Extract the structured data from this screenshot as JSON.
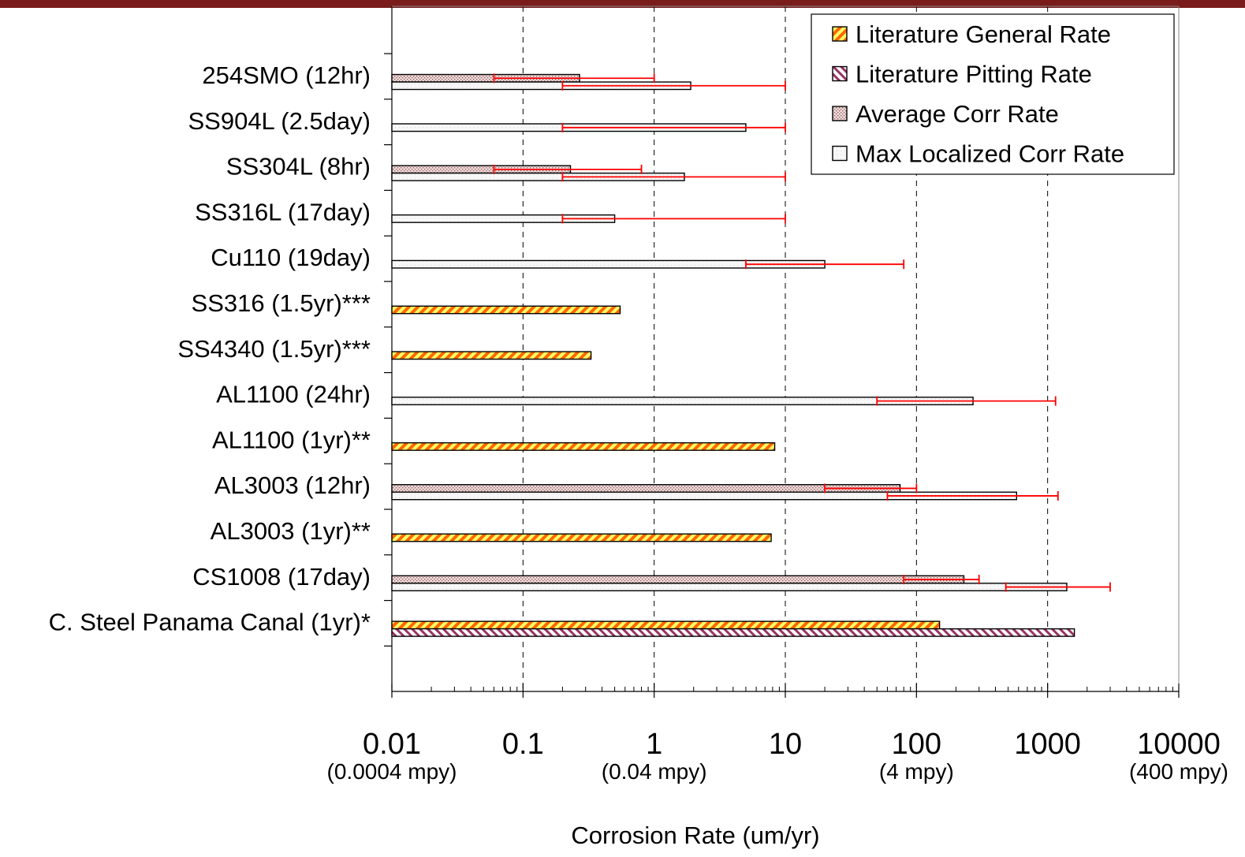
{
  "theme": {
    "top_bar_color": "#7a1c1c",
    "error_bar_color": "#ff0000",
    "lit_general_stripe": "#ff6600",
    "lit_pitting_stripe": "#993366"
  },
  "chart_data": {
    "type": "bar",
    "orientation": "horizontal",
    "x_scale": "log",
    "xlim": [
      0.01,
      10000
    ],
    "x_ticks": [
      {
        "value": 0.01,
        "label": "0.01",
        "sub": "(0.0004 mpy)"
      },
      {
        "value": 0.1,
        "label": "0.1",
        "sub": ""
      },
      {
        "value": 1,
        "label": "1",
        "sub": "(0.04 mpy)"
      },
      {
        "value": 10,
        "label": "10",
        "sub": ""
      },
      {
        "value": 100,
        "label": "100",
        "sub": "(4 mpy)"
      },
      {
        "value": 1000,
        "label": "1000",
        "sub": ""
      },
      {
        "value": 10000,
        "label": "10000",
        "sub": "(400 mpy)"
      }
    ],
    "xlabel": "Corrosion Rate (um/yr)",
    "ylabel": "",
    "grid": "vertical dashed at decades",
    "legend_position": "top-right",
    "legend": [
      {
        "name": "Literature General Rate",
        "pattern": "lit-general"
      },
      {
        "name": "Literature Pitting Rate",
        "pattern": "lit-pitting"
      },
      {
        "name": "Average Corr Rate",
        "pattern": "avg"
      },
      {
        "name": "Max Localized Corr Rate",
        "pattern": "max"
      }
    ],
    "categories": [
      "254SMO (12hr)",
      "SS904L (2.5day)",
      "SS304L (8hr)",
      "SS316L (17day)",
      "Cu110 (19day)",
      "SS316 (1.5yr)***",
      "SS4340 (1.5yr)***",
      "AL1100 (24hr)",
      "AL1100 (1yr)**",
      "AL3003 (12hr)",
      "AL3003 (1yr)**",
      "CS1008 (17day)",
      "C. Steel Panama Canal (1yr)*"
    ],
    "bars": [
      {
        "category": "254SMO (12hr)",
        "series": "avg",
        "value": 0.27,
        "err": [
          0.06,
          1.0
        ]
      },
      {
        "category": "254SMO (12hr)",
        "series": "max",
        "value": 1.9,
        "err": [
          0.2,
          10
        ]
      },
      {
        "category": "SS904L (2.5day)",
        "series": "max",
        "value": 5.0,
        "err": [
          0.2,
          10
        ]
      },
      {
        "category": "SS304L (8hr)",
        "series": "avg",
        "value": 0.23,
        "err": [
          0.06,
          0.8
        ]
      },
      {
        "category": "SS304L (8hr)",
        "series": "max",
        "value": 1.7,
        "err": [
          0.2,
          10
        ]
      },
      {
        "category": "SS316L (17day)",
        "series": "max",
        "value": 0.5,
        "err": [
          0.2,
          10
        ]
      },
      {
        "category": "Cu110 (19day)",
        "series": "max",
        "value": 20,
        "err": [
          5,
          80
        ]
      },
      {
        "category": "SS316 (1.5yr)***",
        "series": "lit-general",
        "value": 0.55
      },
      {
        "category": "SS4340 (1.5yr)***",
        "series": "lit-general",
        "value": 0.33
      },
      {
        "category": "AL1100 (24hr)",
        "series": "max",
        "value": 270,
        "err": [
          50,
          1150
        ]
      },
      {
        "category": "AL1100 (1yr)**",
        "series": "lit-general",
        "value": 8.3
      },
      {
        "category": "AL3003 (12hr)",
        "series": "avg",
        "value": 75,
        "err": [
          20,
          100
        ]
      },
      {
        "category": "AL3003 (12hr)",
        "series": "max",
        "value": 580,
        "err": [
          60,
          1200
        ]
      },
      {
        "category": "AL3003 (1yr)**",
        "series": "lit-general",
        "value": 7.8
      },
      {
        "category": "CS1008 (17day)",
        "series": "avg",
        "value": 230,
        "err": [
          80,
          300
        ]
      },
      {
        "category": "CS1008 (17day)",
        "series": "max",
        "value": 1400,
        "err": [
          480,
          3000
        ]
      },
      {
        "category": "C. Steel Panama Canal (1yr)*",
        "series": "lit-general",
        "value": 150
      },
      {
        "category": "C. Steel Panama Canal (1yr)*",
        "series": "lit-pitting",
        "value": 1600
      }
    ]
  }
}
